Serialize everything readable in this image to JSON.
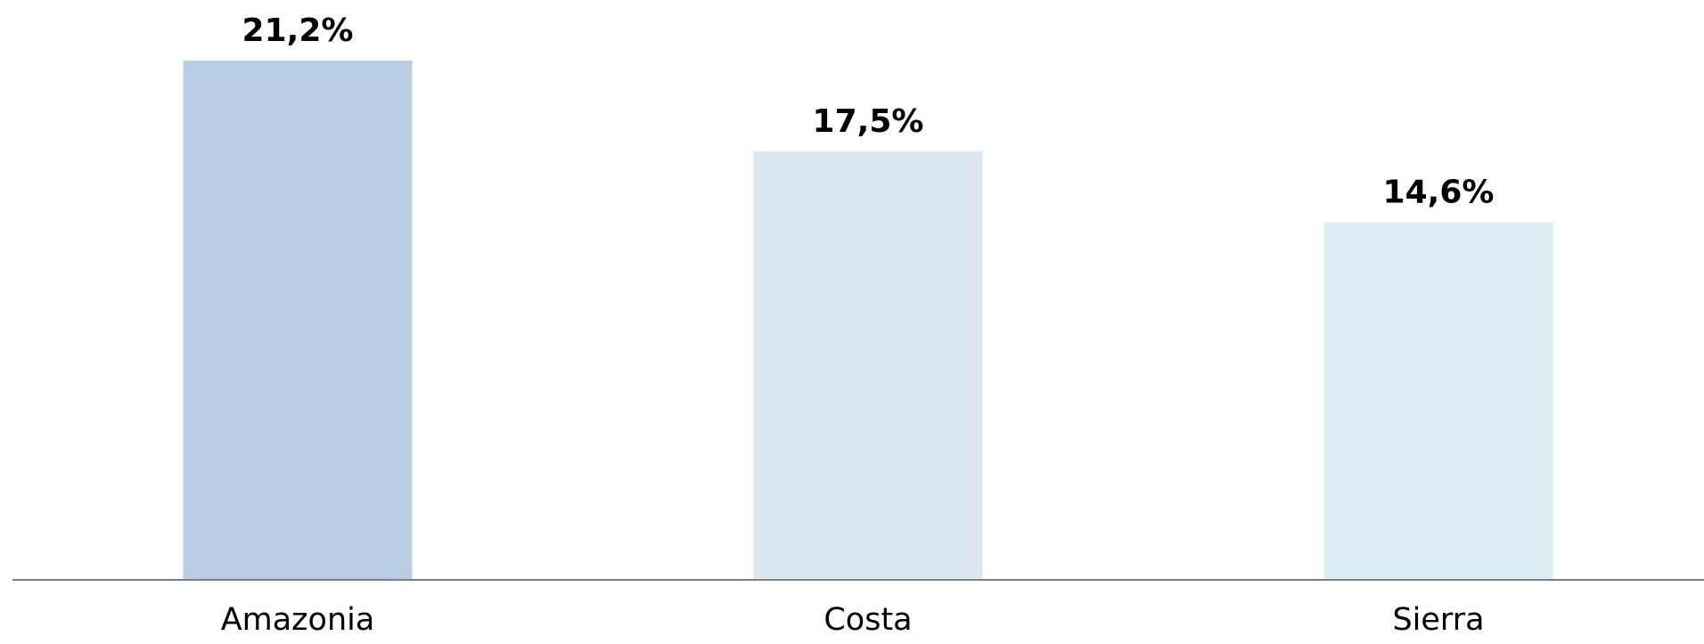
{
  "chart_data": {
    "type": "bar",
    "title": "",
    "xlabel": "",
    "ylabel": "",
    "categories": [
      "Amazonia",
      "Costa",
      "Sierra"
    ],
    "values": [
      21.2,
      17.5,
      14.6
    ],
    "data_labels": [
      "21,2%",
      "17,5%",
      "14,6%"
    ],
    "colors": [
      "#b9cde4",
      "#dce6f1",
      "#dbeef4"
    ],
    "axis_color": "#7f7f7f",
    "grid": false,
    "legend": "none",
    "yaxis_visible": false
  }
}
